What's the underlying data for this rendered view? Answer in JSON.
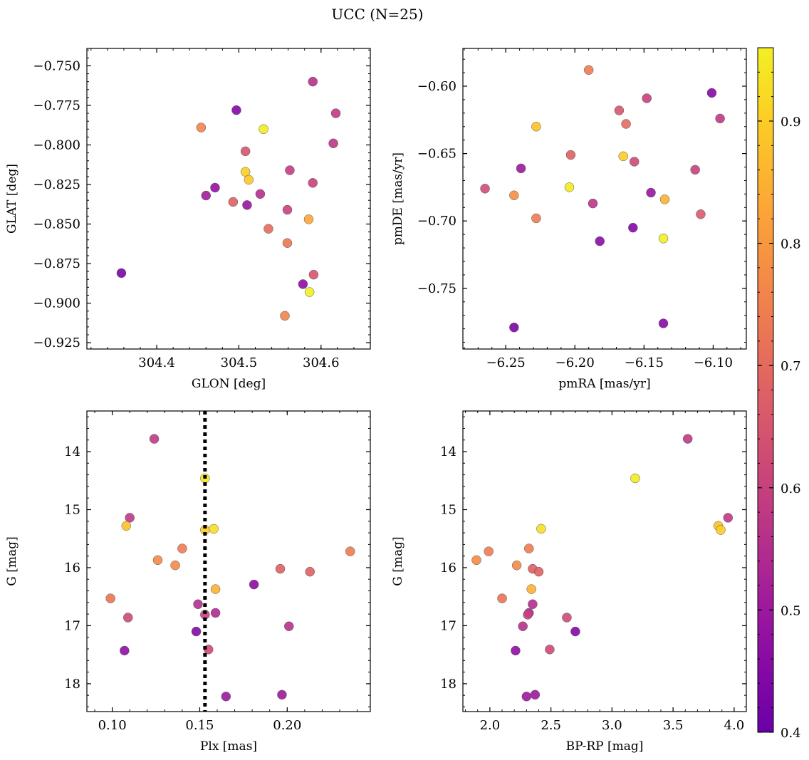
{
  "figure_title": "UCC (N=25)",
  "colorbar": {
    "min": 0.4,
    "max": 0.96,
    "ticks": [
      0.4,
      0.5,
      0.6,
      0.7,
      0.8,
      0.9
    ],
    "tick_labels": [
      "0.4",
      "0.5",
      "0.6",
      "0.7",
      "0.8",
      "0.9"
    ],
    "colormap": "plasma"
  },
  "chart_data": [
    {
      "type": "scatter",
      "title": "",
      "xlabel": "GLON [deg]",
      "ylabel": "GLAT [deg]",
      "xlim": [
        304.315,
        304.66
      ],
      "ylim": [
        -0.929,
        -0.739
      ],
      "y_inverted": false,
      "xticks": [
        304.4,
        304.5,
        304.6
      ],
      "xtick_labels": [
        "304.4",
        "304.5",
        "304.6"
      ],
      "yticks": [
        -0.925,
        -0.9,
        -0.875,
        -0.85,
        -0.825,
        -0.8,
        -0.775,
        -0.75
      ],
      "ytick_labels": [
        "−0.925",
        "−0.900",
        "−0.875",
        "−0.850",
        "−0.825",
        "−0.800",
        "−0.775",
        "−0.750"
      ],
      "points": [
        {
          "x": 304.59,
          "y": -0.76,
          "c": 0.56
        },
        {
          "x": 304.497,
          "y": -0.778,
          "c": 0.45
        },
        {
          "x": 304.618,
          "y": -0.78,
          "c": 0.58
        },
        {
          "x": 304.454,
          "y": -0.789,
          "c": 0.76
        },
        {
          "x": 304.53,
          "y": -0.79,
          "c": 0.95
        },
        {
          "x": 304.615,
          "y": -0.799,
          "c": 0.57
        },
        {
          "x": 304.508,
          "y": -0.804,
          "c": 0.65
        },
        {
          "x": 304.508,
          "y": -0.817,
          "c": 0.9
        },
        {
          "x": 304.562,
          "y": -0.816,
          "c": 0.59
        },
        {
          "x": 304.512,
          "y": -0.822,
          "c": 0.89
        },
        {
          "x": 304.59,
          "y": -0.824,
          "c": 0.6
        },
        {
          "x": 304.471,
          "y": -0.827,
          "c": 0.48
        },
        {
          "x": 304.526,
          "y": -0.831,
          "c": 0.55
        },
        {
          "x": 304.46,
          "y": -0.832,
          "c": 0.51
        },
        {
          "x": 304.493,
          "y": -0.836,
          "c": 0.68
        },
        {
          "x": 304.51,
          "y": -0.838,
          "c": 0.49
        },
        {
          "x": 304.559,
          "y": -0.841,
          "c": 0.6
        },
        {
          "x": 304.585,
          "y": -0.847,
          "c": 0.83
        },
        {
          "x": 304.536,
          "y": -0.853,
          "c": 0.7
        },
        {
          "x": 304.559,
          "y": -0.862,
          "c": 0.73
        },
        {
          "x": 304.357,
          "y": -0.881,
          "c": 0.43
        },
        {
          "x": 304.591,
          "y": -0.882,
          "c": 0.65
        },
        {
          "x": 304.578,
          "y": -0.888,
          "c": 0.47
        },
        {
          "x": 304.586,
          "y": -0.893,
          "c": 0.96
        },
        {
          "x": 304.556,
          "y": -0.908,
          "c": 0.76
        }
      ]
    },
    {
      "type": "scatter",
      "title": "",
      "xlabel": "pmRA [mas/yr]",
      "ylabel": "pmDE [mas/yr]",
      "xlim": [
        -6.281,
        -6.076
      ],
      "ylim": [
        -0.795,
        -0.572
      ],
      "y_inverted": false,
      "xticks": [
        -6.25,
        -6.2,
        -6.15,
        -6.1
      ],
      "xtick_labels": [
        "−6.25",
        "−6.20",
        "−6.15",
        "−6.10"
      ],
      "yticks": [
        -0.75,
        -0.7,
        -0.65,
        -0.6
      ],
      "ytick_labels": [
        "−0.75",
        "−0.70",
        "−0.65",
        "−0.60"
      ],
      "points": [
        {
          "x": -6.19,
          "y": -0.588,
          "c": 0.74
        },
        {
          "x": -6.101,
          "y": -0.605,
          "c": 0.45
        },
        {
          "x": -6.148,
          "y": -0.609,
          "c": 0.6
        },
        {
          "x": -6.168,
          "y": -0.618,
          "c": 0.65
        },
        {
          "x": -6.095,
          "y": -0.624,
          "c": 0.58
        },
        {
          "x": -6.163,
          "y": -0.628,
          "c": 0.7
        },
        {
          "x": -6.228,
          "y": -0.63,
          "c": 0.88
        },
        {
          "x": -6.203,
          "y": -0.651,
          "c": 0.68
        },
        {
          "x": -6.165,
          "y": -0.652,
          "c": 0.9
        },
        {
          "x": -6.157,
          "y": -0.656,
          "c": 0.62
        },
        {
          "x": -6.113,
          "y": -0.662,
          "c": 0.6
        },
        {
          "x": -6.239,
          "y": -0.661,
          "c": 0.5
        },
        {
          "x": -6.265,
          "y": -0.676,
          "c": 0.63
        },
        {
          "x": -6.204,
          "y": -0.675,
          "c": 0.95
        },
        {
          "x": -6.145,
          "y": -0.679,
          "c": 0.49
        },
        {
          "x": -6.244,
          "y": -0.681,
          "c": 0.78
        },
        {
          "x": -6.135,
          "y": -0.684,
          "c": 0.85
        },
        {
          "x": -6.187,
          "y": -0.687,
          "c": 0.57
        },
        {
          "x": -6.109,
          "y": -0.695,
          "c": 0.66
        },
        {
          "x": -6.228,
          "y": -0.698,
          "c": 0.74
        },
        {
          "x": -6.158,
          "y": -0.705,
          "c": 0.45
        },
        {
          "x": -6.136,
          "y": -0.713,
          "c": 0.96
        },
        {
          "x": -6.182,
          "y": -0.715,
          "c": 0.46
        },
        {
          "x": -6.136,
          "y": -0.776,
          "c": 0.46
        },
        {
          "x": -6.244,
          "y": -0.779,
          "c": 0.43
        }
      ]
    },
    {
      "type": "scatter",
      "title": "",
      "xlabel": "Plx [mas]",
      "ylabel": "G [mag]",
      "xlim": [
        0.0855,
        0.2475
      ],
      "ylim": [
        18.48,
        13.3
      ],
      "y_inverted": true,
      "xticks": [
        0.1,
        0.15,
        0.2
      ],
      "xtick_labels": [
        "0.10",
        "0.15",
        "0.20"
      ],
      "yticks": [
        14,
        15,
        16,
        17,
        18
      ],
      "ytick_labels": [
        "14",
        "15",
        "16",
        "17",
        "18"
      ],
      "reference_line": {
        "x": 0.153,
        "style": "dotted",
        "color": "#000000"
      },
      "points": [
        {
          "x": 0.124,
          "y": 13.78,
          "c": 0.58
        },
        {
          "x": 0.153,
          "y": 14.46,
          "c": 0.95
        },
        {
          "x": 0.11,
          "y": 15.14,
          "c": 0.58
        },
        {
          "x": 0.108,
          "y": 15.28,
          "c": 0.88
        },
        {
          "x": 0.153,
          "y": 15.35,
          "c": 0.9
        },
        {
          "x": 0.158,
          "y": 15.33,
          "c": 0.93
        },
        {
          "x": 0.14,
          "y": 15.67,
          "c": 0.74
        },
        {
          "x": 0.236,
          "y": 15.72,
          "c": 0.74
        },
        {
          "x": 0.126,
          "y": 15.87,
          "c": 0.77
        },
        {
          "x": 0.136,
          "y": 15.96,
          "c": 0.77
        },
        {
          "x": 0.196,
          "y": 16.02,
          "c": 0.68
        },
        {
          "x": 0.213,
          "y": 16.07,
          "c": 0.68
        },
        {
          "x": 0.181,
          "y": 16.29,
          "c": 0.46
        },
        {
          "x": 0.159,
          "y": 16.37,
          "c": 0.85
        },
        {
          "x": 0.099,
          "y": 16.53,
          "c": 0.72
        },
        {
          "x": 0.149,
          "y": 16.63,
          "c": 0.55
        },
        {
          "x": 0.159,
          "y": 16.78,
          "c": 0.54
        },
        {
          "x": 0.153,
          "y": 16.81,
          "c": 0.6
        },
        {
          "x": 0.109,
          "y": 16.86,
          "c": 0.62
        },
        {
          "x": 0.201,
          "y": 17.01,
          "c": 0.56
        },
        {
          "x": 0.148,
          "y": 17.1,
          "c": 0.45
        },
        {
          "x": 0.107,
          "y": 17.43,
          "c": 0.47
        },
        {
          "x": 0.155,
          "y": 17.41,
          "c": 0.62
        },
        {
          "x": 0.197,
          "y": 18.19,
          "c": 0.5
        },
        {
          "x": 0.165,
          "y": 18.22,
          "c": 0.5
        }
      ]
    },
    {
      "type": "scatter",
      "title": "",
      "xlabel": "BP-RP [mag]",
      "ylabel": "G [mag]",
      "xlim": [
        1.779,
        4.1
      ],
      "ylim": [
        18.48,
        13.3
      ],
      "y_inverted": true,
      "xticks": [
        2.0,
        2.5,
        3.0,
        3.5,
        4.0
      ],
      "xtick_labels": [
        "2.0",
        "2.5",
        "3.0",
        "3.5",
        "4.0"
      ],
      "yticks": [
        14,
        15,
        16,
        17,
        18
      ],
      "ytick_labels": [
        "14",
        "15",
        "16",
        "17",
        "18"
      ],
      "points": [
        {
          "x": 3.62,
          "y": 13.78,
          "c": 0.58
        },
        {
          "x": 3.19,
          "y": 14.46,
          "c": 0.95
        },
        {
          "x": 3.95,
          "y": 15.14,
          "c": 0.58
        },
        {
          "x": 3.87,
          "y": 15.28,
          "c": 0.88
        },
        {
          "x": 3.89,
          "y": 15.35,
          "c": 0.9
        },
        {
          "x": 2.42,
          "y": 15.33,
          "c": 0.93
        },
        {
          "x": 2.32,
          "y": 15.67,
          "c": 0.74
        },
        {
          "x": 1.99,
          "y": 15.72,
          "c": 0.74
        },
        {
          "x": 1.89,
          "y": 15.87,
          "c": 0.77
        },
        {
          "x": 2.22,
          "y": 15.96,
          "c": 0.77
        },
        {
          "x": 2.35,
          "y": 16.02,
          "c": 0.68
        },
        {
          "x": 2.4,
          "y": 16.07,
          "c": 0.68
        },
        {
          "x": 2.34,
          "y": 16.37,
          "c": 0.85
        },
        {
          "x": 2.1,
          "y": 16.53,
          "c": 0.72
        },
        {
          "x": 2.35,
          "y": 16.63,
          "c": 0.55
        },
        {
          "x": 2.32,
          "y": 16.78,
          "c": 0.54
        },
        {
          "x": 2.31,
          "y": 16.81,
          "c": 0.6
        },
        {
          "x": 2.63,
          "y": 16.86,
          "c": 0.62
        },
        {
          "x": 2.27,
          "y": 17.01,
          "c": 0.56
        },
        {
          "x": 2.7,
          "y": 17.1,
          "c": 0.45
        },
        {
          "x": 2.21,
          "y": 17.43,
          "c": 0.47
        },
        {
          "x": 2.49,
          "y": 17.41,
          "c": 0.62
        },
        {
          "x": 2.37,
          "y": 18.19,
          "c": 0.5
        },
        {
          "x": 2.3,
          "y": 18.22,
          "c": 0.5
        }
      ]
    }
  ]
}
